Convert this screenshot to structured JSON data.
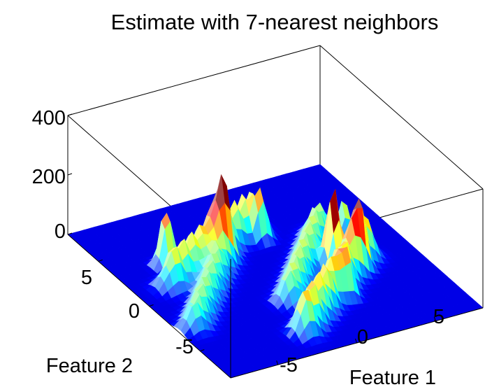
{
  "chart_data": {
    "type": "surface",
    "title": "Estimate with 7-nearest neighbors",
    "xlabel": "Feature 1",
    "ylabel": "Feature 2",
    "zlabel": "",
    "xlim": [
      -8,
      8
    ],
    "ylim": [
      -8,
      8
    ],
    "zlim": [
      0,
      400
    ],
    "x_ticks": [
      "-5",
      "0",
      "5"
    ],
    "y_ticks": [
      "-5",
      "0",
      "5"
    ],
    "z_ticks": [
      "0",
      "200",
      "400"
    ],
    "grid": false,
    "colormap": "jet",
    "colors": {
      "low": "#0000ff",
      "mid": "#00ffff",
      "high": "#ffff00",
      "peak": "#ff0000"
    },
    "surface_features": [
      {
        "shape": "ridge",
        "from": [
          -6,
          1
        ],
        "to": [
          1,
          4
        ],
        "height": 140
      },
      {
        "shape": "ridge",
        "from": [
          -7,
          -3
        ],
        "to": [
          -2,
          2
        ],
        "height": 110
      },
      {
        "shape": "ridge",
        "from": [
          -2,
          -6
        ],
        "to": [
          5,
          -1
        ],
        "height": 150
      },
      {
        "shape": "ridge",
        "from": [
          -1,
          -3
        ],
        "to": [
          4,
          2
        ],
        "height": 120
      },
      {
        "shape": "peak",
        "at": [
          -5,
          3
        ],
        "height": 200
      },
      {
        "shape": "peak",
        "at": [
          -2,
          2
        ],
        "height": 150
      },
      {
        "shape": "peak",
        "at": [
          1,
          3
        ],
        "height": 160
      },
      {
        "shape": "peak",
        "at": [
          3,
          -1
        ],
        "height": 270
      },
      {
        "shape": "peak",
        "at": [
          5,
          1
        ],
        "height": 140
      },
      {
        "shape": "peak",
        "at": [
          4,
          -2
        ],
        "height": 140
      },
      {
        "shape": "peak",
        "at": [
          2,
          -4
        ],
        "height": 120
      }
    ]
  }
}
